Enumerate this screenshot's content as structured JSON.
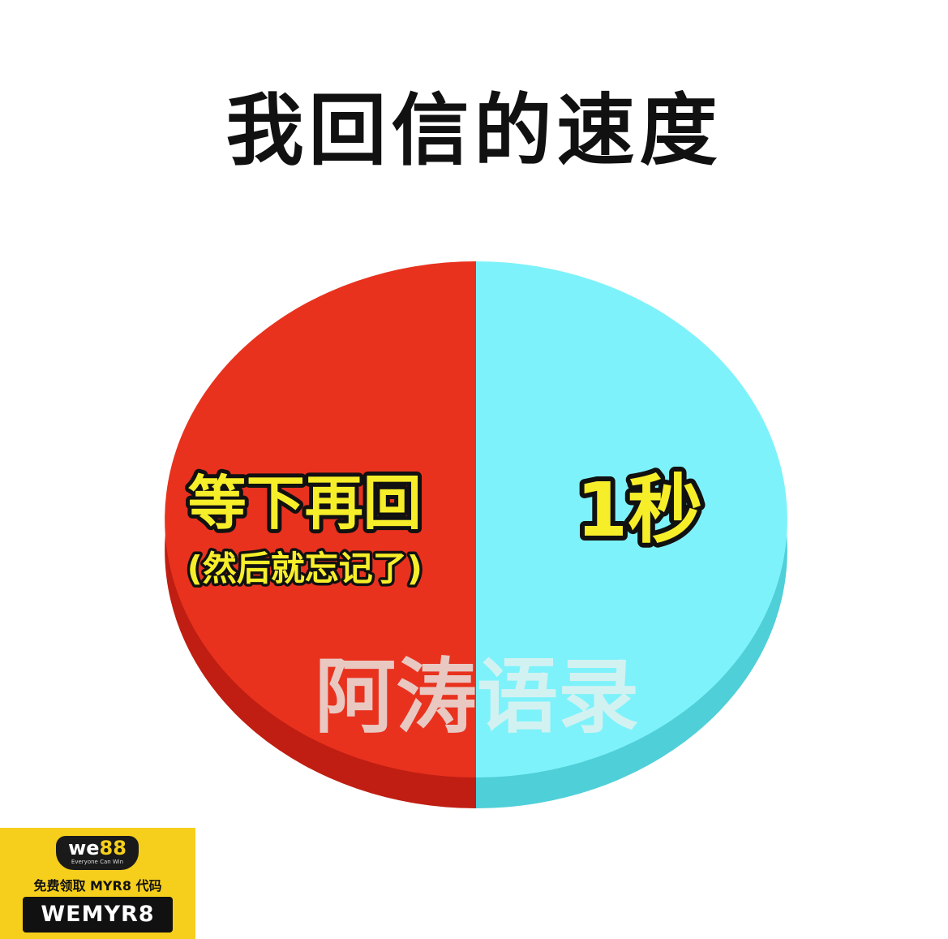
{
  "chart_data": {
    "type": "pie",
    "title": "我回信的速度",
    "slices": [
      {
        "label": "1秒",
        "sublabel": "",
        "value": 50,
        "color": "#7ef2fa",
        "side_color": "#4fcfd8"
      },
      {
        "label": "等下再回",
        "sublabel": "(然后就忘记了)",
        "value": 50,
        "color": "#e8321e",
        "side_color": "#c01e12"
      }
    ],
    "legend": "none",
    "label_color": "#f7ee2a"
  },
  "watermark": "阿涛语录",
  "promo": {
    "logo_main": "we",
    "logo_accent": "88",
    "tagline": "Everyone Can Win",
    "line": "免费领取 MYR8 代码",
    "code": "WEMYR8"
  }
}
